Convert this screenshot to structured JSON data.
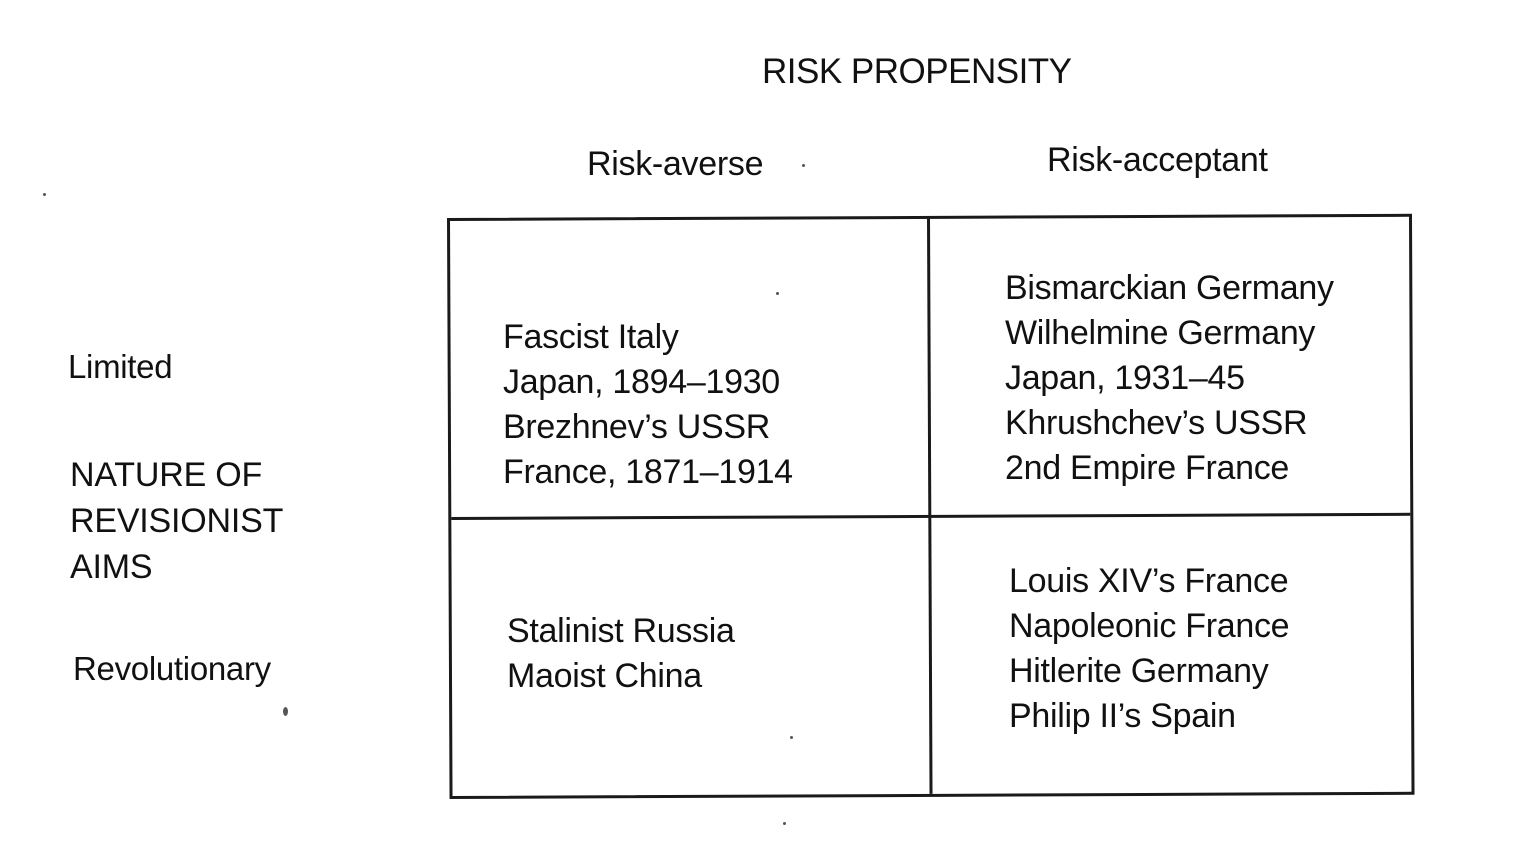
{
  "diagram": {
    "title": "RISK PROPENSITY",
    "columns": {
      "left": "Risk-averse",
      "right": "Risk-acceptant"
    },
    "rows": {
      "top": "Limited",
      "bottom": "Revolutionary"
    },
    "axis_label": [
      "NATURE OF",
      "REVISIONIST",
      "AIMS"
    ],
    "cells": {
      "limited_averse": [
        "Fascist Italy",
        "Japan, 1894–1930",
        "Brezhnev’s USSR",
        "France, 1871–1914"
      ],
      "limited_acceptant": [
        "Bismarckian Germany",
        "Wilhelmine Germany",
        "Japan, 1931–45",
        "Khrushchev’s USSR",
        "2nd Empire France"
      ],
      "revolutionary_averse": [
        "Stalinist Russia",
        "Maoist China"
      ],
      "revolutionary_acceptant": [
        "Louis XIV’s France",
        "Napoleonic France",
        "Hitlerite Germany",
        "Philip II’s Spain"
      ]
    }
  }
}
